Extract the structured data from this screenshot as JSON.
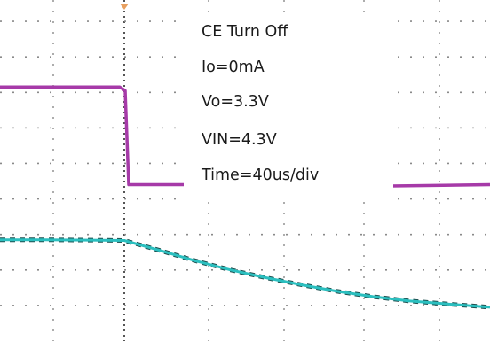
{
  "chart_data": {
    "type": "line",
    "title": "",
    "x": [
      0,
      40,
      80,
      120,
      160,
      200,
      240,
      280,
      320,
      360,
      400,
      440,
      480,
      520,
      560
    ],
    "xunit": "us",
    "xlim": [
      0,
      552
    ],
    "time_per_div": "40us/div",
    "series": [
      {
        "color": "#a63aa8",
        "x": [
          0,
          135,
          141,
          145,
          200,
          300,
          400,
          552
        ],
        "values": [
          7.15,
          7.15,
          7.05,
          4.4,
          4.4,
          4.4,
          4.35,
          4.4
        ]
      },
      {
        "color": "#2bbfbf",
        "x": [
          0,
          50,
          100,
          140,
          180,
          220,
          260,
          300,
          340,
          380,
          420,
          460,
          500,
          552
        ],
        "values": [
          2.85,
          2.85,
          2.84,
          2.83,
          2.55,
          2.26,
          2.0,
          1.78,
          1.58,
          1.4,
          1.25,
          1.13,
          1.05,
          0.95
        ]
      }
    ],
    "ylim": [
      0,
      9.6
    ],
    "grid": true,
    "annotations": {
      "line1": "CE Turn Off",
      "line2": "Io=0mA",
      "line3": "Vo=3.3V",
      "line4": "VIN=4.3V",
      "line5": "Time=40us/div"
    },
    "trigger_marker_color": "#e8a060"
  }
}
